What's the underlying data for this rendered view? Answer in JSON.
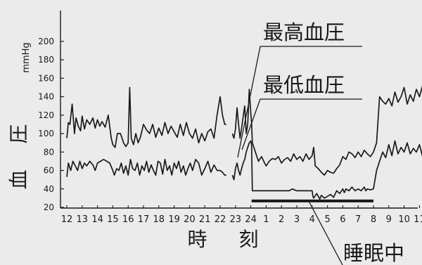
{
  "chart_data": {
    "type": "line",
    "ylabel": "血 圧",
    "yunit": "mmHg",
    "xlabel": "時 刻",
    "ylim": [
      20,
      210
    ],
    "yticks": [
      20,
      40,
      60,
      80,
      100,
      120,
      140,
      160,
      180,
      200
    ],
    "x_tick_labels": [
      "12",
      "13",
      "14",
      "15",
      "16",
      "17",
      "18",
      "19",
      "20",
      "21",
      "22",
      "23",
      "24",
      "1",
      "2",
      "3",
      "4",
      "5",
      "6",
      "7",
      "8",
      "9",
      "10",
      "11"
    ],
    "grid": false,
    "series": [
      {
        "name": "最高血圧",
        "key": "systolic",
        "segments": [
          {
            "x": [
              12.0,
              12.1,
              12.2,
              12.35,
              12.5,
              12.6,
              12.75,
              12.9,
              13.0,
              13.15,
              13.3,
              13.5,
              13.7,
              13.85,
              14.0,
              14.15,
              14.3,
              14.5,
              14.7,
              14.9,
              15.0,
              15.15,
              15.3,
              15.5,
              15.7,
              15.85,
              16.0,
              16.1,
              16.2,
              16.35,
              16.5,
              16.65,
              16.8,
              17.0,
              17.2,
              17.4,
              17.6,
              17.8,
              18.0,
              18.2,
              18.4,
              18.6,
              18.8,
              19.0,
              19.2,
              19.4,
              19.6,
              19.8,
              20.0,
              20.2,
              20.4,
              20.6,
              20.8,
              21.0,
              21.2,
              21.4,
              21.6,
              21.8,
              22.0,
              22.15,
              22.3,
              22.4
            ],
            "y": [
              95,
              112,
              110,
              132,
              100,
              117,
              108,
              103,
              119,
              105,
              115,
              110,
              117,
              106,
              115,
              108,
              113,
              107,
              120,
              95,
              88,
              85,
              100,
              100,
              90,
              86,
              90,
              150,
              95,
              88,
              100,
              90,
              96,
              110,
              104,
              100,
              110,
              96,
              106,
              98,
              112,
              100,
              108,
              102,
              96,
              110,
              98,
              112,
              100,
              95,
              105,
              90,
              100,
              92,
              102,
              105,
              95,
              120,
              140,
              120,
              110,
              110
            ]
          },
          {
            "x": [
              22.8,
              22.9,
              23.0,
              23.1,
              23.2,
              23.3,
              23.4,
              23.5,
              23.6,
              23.7,
              23.8,
              23.9,
              24.0,
              24.05
            ],
            "y": [
              100,
              95,
              105,
              128,
              110,
              95,
              106,
              118,
              130,
              100,
              110,
              148,
              122,
              112
            ]
          },
          {
            "x": [
              24.05,
              24.1,
              24.3,
              24.5,
              24.7,
              24.9,
              25.0,
              25.2,
              25.4,
              25.6,
              25.8,
              26.0,
              26.2,
              26.4,
              26.6,
              26.8,
              27.0,
              27.2,
              27.4,
              27.6,
              27.8,
              28.0,
              28.1,
              28.2,
              28.4,
              28.6,
              28.8,
              29.0,
              29.2,
              29.4,
              29.6,
              29.8,
              30.0,
              30.2,
              30.4,
              30.6,
              30.8,
              31.0,
              31.2,
              31.4,
              31.6,
              31.8,
              32.0
            ],
            "y": [
              112,
              90,
              80,
              70,
              75,
              68,
              65,
              70,
              73,
              72,
              75,
              68,
              72,
              74,
              70,
              78,
              72,
              75,
              70,
              78,
              72,
              76,
              85,
              65,
              62,
              58,
              55,
              60,
              58,
              57,
              62,
              66,
              75,
              72,
              80,
              78,
              74,
              80,
              75,
              82,
              78,
              75,
              80
            ]
          },
          {
            "x": [
              32.0,
              32.2,
              32.4,
              32.6,
              32.8,
              33.0,
              33.2,
              33.4,
              33.6,
              33.8,
              34.0,
              34.2,
              34.4,
              34.6,
              34.8,
              35.0,
              35.2,
              35.4,
              35.6,
              35.8,
              36.0,
              36.2,
              36.4,
              36.6,
              36.8,
              37.0,
              37.1,
              37.25,
              37.4,
              37.55,
              37.7,
              37.85,
              38.0,
              38.15,
              38.3,
              38.5,
              38.7,
              38.85,
              39.0
            ],
            "y": [
              80,
              90,
              140,
              135,
              132,
              138,
              130,
              145,
              134,
              140,
              150,
              132,
              142,
              135,
              148,
              140,
              152,
              138,
              130,
              142,
              136,
              140,
              128,
              118,
              112,
              98,
              96,
              138,
              134,
              125,
              150,
              145,
              138,
              132,
              128,
              140,
              135,
              126,
              120
            ]
          }
        ]
      },
      {
        "name": "最低血圧",
        "key": "diastolic",
        "segments": [
          {
            "x": [
              12.0,
              12.1,
              12.25,
              12.4,
              12.55,
              12.7,
              12.85,
              13.0,
              13.15,
              13.3,
              13.5,
              13.7,
              13.85,
              14.0,
              14.2,
              14.4,
              14.6,
              14.8,
              15.0,
              15.1,
              15.25,
              15.4,
              15.55,
              15.7,
              15.85,
              16.0,
              16.15,
              16.3,
              16.45,
              16.6,
              16.75,
              16.9,
              17.05,
              17.2,
              17.35,
              17.5,
              17.65,
              17.8,
              17.95,
              18.1,
              18.25,
              18.4,
              18.55,
              18.7,
              18.85,
              19.0,
              19.15,
              19.3,
              19.45,
              19.6,
              19.75,
              19.9,
              20.05,
              20.2,
              20.4,
              20.6,
              20.8,
              21.0,
              21.2,
              21.4,
              21.6,
              21.8,
              22.0,
              22.15,
              22.3,
              22.4
            ],
            "y": [
              53,
              68,
              60,
              70,
              65,
              60,
              70,
              62,
              68,
              65,
              70,
              66,
              60,
              68,
              70,
              72,
              70,
              68,
              60,
              55,
              62,
              60,
              68,
              57,
              65,
              55,
              72,
              62,
              60,
              68,
              55,
              65,
              60,
              70,
              58,
              66,
              60,
              55,
              70,
              68,
              56,
              72,
              60,
              65,
              55,
              68,
              62,
              70,
              58,
              65,
              55,
              62,
              68,
              60,
              72,
              68,
              55,
              62,
              70,
              58,
              66,
              60,
              60,
              58,
              55,
              55
            ]
          },
          {
            "x": [
              22.8,
              22.9,
              23.0,
              23.1,
              23.2,
              23.3,
              23.4,
              23.5,
              23.6,
              23.7,
              23.8,
              23.9,
              24.0,
              24.05
            ],
            "y": [
              55,
              50,
              62,
              68,
              60,
              55,
              62,
              68,
              72,
              80,
              85,
              90,
              92,
              88
            ]
          },
          {
            "x": [
              24.05,
              24.1,
              25.0,
              26.0,
              26.5,
              26.7,
              27.0,
              27.5,
              28.0,
              28.05,
              28.1,
              28.3,
              28.5,
              28.6,
              28.8,
              29.0,
              29.2,
              29.4,
              29.6,
              29.8,
              30.0,
              30.1,
              30.2,
              30.4,
              30.6,
              30.8,
              31.0,
              31.2,
              31.4,
              31.5,
              31.6,
              31.8,
              32.0
            ],
            "y": [
              88,
              38,
              38,
              38,
              38,
              40,
              38,
              38,
              38,
              32,
              30,
              35,
              29,
              33,
              30,
              32,
              34,
              31,
              38,
              35,
              40,
              36,
              40,
              38,
              42,
              38,
              40,
              38,
              42,
              38,
              40,
              39,
              40
            ]
          },
          {
            "x": [
              32.0,
              32.2,
              32.4,
              32.6,
              32.8,
              33.0,
              33.2,
              33.4,
              33.6,
              33.8,
              34.0,
              34.2,
              34.4,
              34.6,
              34.8,
              35.0,
              35.2,
              35.4,
              35.6,
              35.8,
              36.0,
              36.2,
              36.4,
              36.6,
              36.8,
              37.0,
              37.1,
              37.25,
              37.4,
              37.6,
              37.8,
              38.0,
              38.2,
              38.4,
              38.6,
              38.8,
              39.0
            ],
            "y": [
              40,
              60,
              70,
              80,
              74,
              88,
              76,
              92,
              78,
              85,
              80,
              90,
              78,
              84,
              80,
              88,
              75,
              85,
              78,
              82,
              92,
              80,
              86,
              78,
              85,
              72,
              75,
              60,
              66,
              72,
              85,
              78,
              82,
              74,
              86,
              70,
              70
            ]
          }
        ]
      }
    ],
    "sleep_period": {
      "from": 24.05,
      "to": 32.0,
      "y": 27
    },
    "annotations": [
      {
        "text": "最高血圧",
        "series": "systolic"
      },
      {
        "text": "最低血圧",
        "series": "diastolic"
      },
      {
        "text": "睡眠中",
        "series": "sleep"
      }
    ]
  },
  "colors": {
    "line": "#1a1a1a",
    "background": "#ebebeb"
  }
}
